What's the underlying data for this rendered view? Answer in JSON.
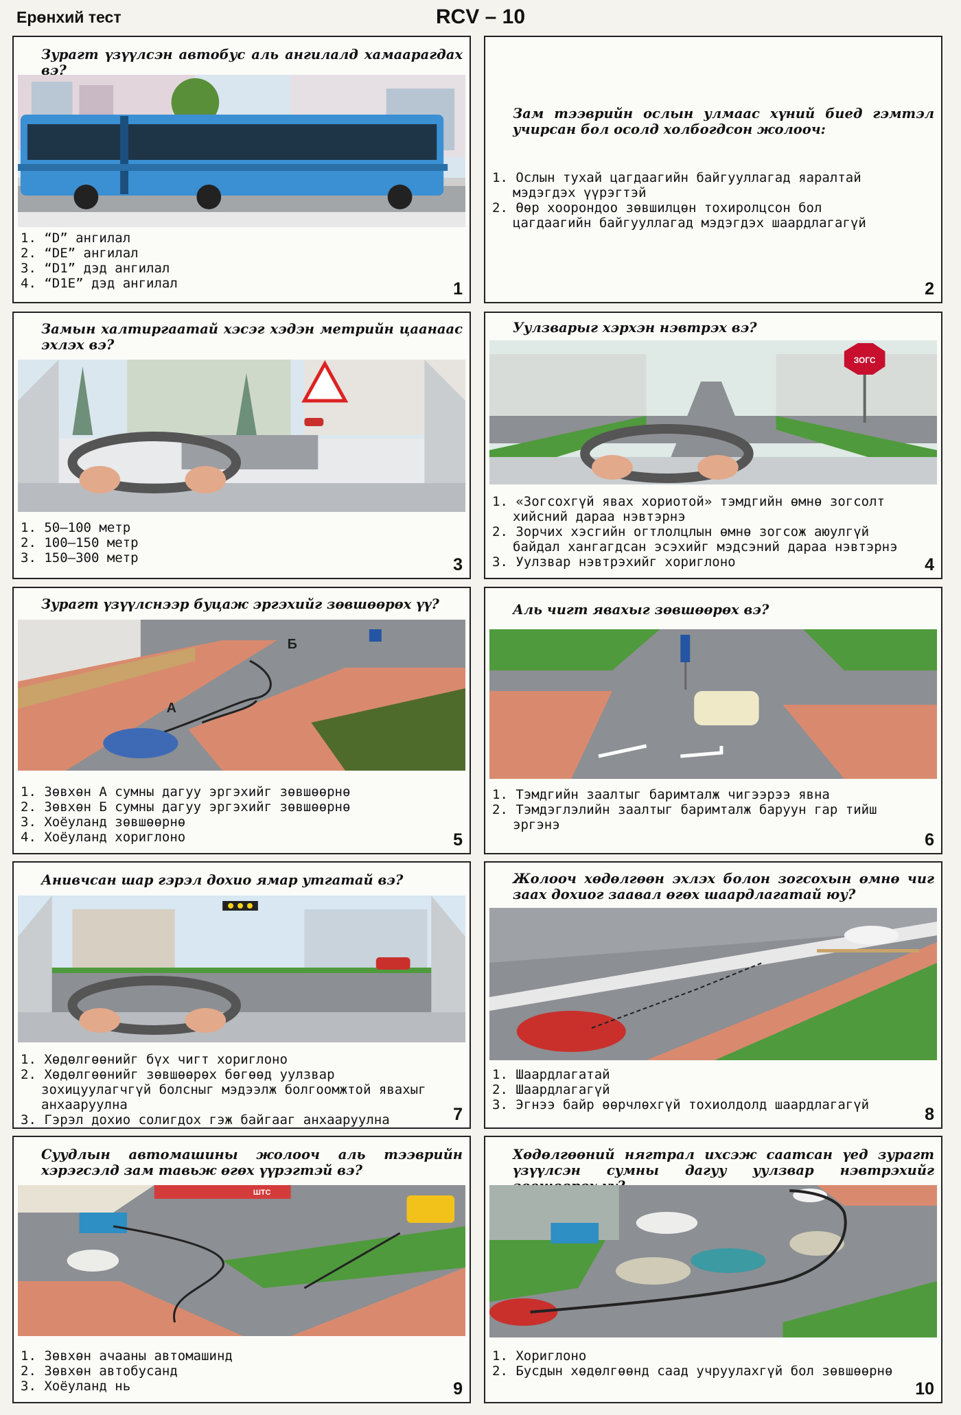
{
  "header": {
    "left": "Ерөнхий тест",
    "center": "RCV – 10"
  },
  "cards": [
    {
      "number": "1",
      "question": "Зурагт үзүүлсэн автобус аль ангилалд хамаарагдах вэ?",
      "answers": [
        "1. “D” ангилал",
        "2. “DE” ангилал",
        "3. “D1” дэд ангилал",
        "4. “D1E” дэд ангилал"
      ]
    },
    {
      "number": "2",
      "question": "Зам тээврийн ослын улмаас хүний биед гэмтэл учирсан бол осолд холбогдсон жолооч:",
      "answers": [
        "1. Ослын тухай цагдаагийн байгууллагад яаралтай мэдэгдэх үүрэгтэй",
        "2. Өөр хоорондоо зөвшилцөн тохиролцсон бол цагдаагийн байгууллагад мэдэгдэх шаардлагагүй"
      ]
    },
    {
      "number": "3",
      "question": "Замын халтиргаатай хэсэг хэдэн метрийн цаанаас эхлэх вэ?",
      "answers": [
        "1. 50–100 метр",
        "2. 100–150 метр",
        "3. 150–300 метр"
      ]
    },
    {
      "number": "4",
      "question": "Уулзварыг хэрхэн нэвтрэх вэ?",
      "answers": [
        "1. «Зогсохгүй явах хориотой» тэмдгийн өмнө зогсолт хийсний дараа нэвтэрнэ",
        "2. Зорчих хэсгийн огтлолцлын өмнө зогсож аюулгүй байдал хангагдсан эсэхийг мэдсэний дараа нэвтэрнэ",
        "3. Уулзвар нэвтрэхийг хориглоно"
      ],
      "sign_text": "ЗОГС"
    },
    {
      "number": "5",
      "question": "Зурагт үзүүлснээр буцаж эргэхийг зөвшөөрөх үү?",
      "answers": [
        "1. Зөвхөн А сумны дагуу эргэхийг зөвшөөрнө",
        "2. Зөвхөн Б сумны дагуу эргэхийг зөвшөөрнө",
        "3. Хоёуланд зөвшөөрнө",
        "4. Хоёуланд хориглоно"
      ],
      "label_a": "А",
      "label_b": "Б"
    },
    {
      "number": "6",
      "question": "Аль чигт явахыг зөвшөөрөх вэ?",
      "answers": [
        "1. Тэмдгийн заалтыг баримталж чигээрээ явна",
        "2. Тэмдэглэлийн заалтыг баримталж баруун гар тийш эргэнэ"
      ]
    },
    {
      "number": "7",
      "question": "Анивчсан шар гэрэл дохио ямар утгатай вэ?",
      "answers": [
        "1. Хөдөлгөөнийг бүх чигт хориглоно",
        "2. Хөдөлгөөнийг зөвшөөрөх бөгөөд уулзвар зохицуулагчгүй болсныг мэдээлж болгоомжтой явахыг анхааруулна",
        "3. Гэрэл дохио солигдох гэж байгааг анхааруулна"
      ]
    },
    {
      "number": "8",
      "question": "Жолооч хөдөлгөөн эхлэх болон зогсохын өмнө чиг заах дохиог заавал өгөх шаардлагатай юу?",
      "answers": [
        "1. Шаардлагатай",
        "2. Шаардлагагүй",
        "3. Эгнээ байр өөрчлөхгүй тохиолдолд шаардлагагүй"
      ]
    },
    {
      "number": "9",
      "question": "Суудлын автомашины жолооч аль тээврийн хэрэгсэлд зам тавьж өгөх үүрэгтэй вэ?",
      "answers": [
        "1. Зөвхөн ачааны автомашинд",
        "2. Зөвхөн автобусанд",
        "3. Хоёуланд нь"
      ],
      "station_sign": "ШТС"
    },
    {
      "number": "10",
      "question": "Хөдөлгөөний нягтрал ихсэж саатсан үед зурагт үзүүлсэн сумны дагуу уулзвар нэвтрэхийг зөвшөөрөх үү?",
      "answers": [
        "1. Хориглоно",
        "2. Бусдын хөдөлгөөнд саад учруулахгүй бол зөвшөөрнө"
      ]
    }
  ],
  "colors": {
    "road": "#8c8f93",
    "grass": "#4f9a3c",
    "sidewalk": "#d98a6e",
    "bus": "#3b8fd3",
    "sky": "#cfe3f3"
  }
}
